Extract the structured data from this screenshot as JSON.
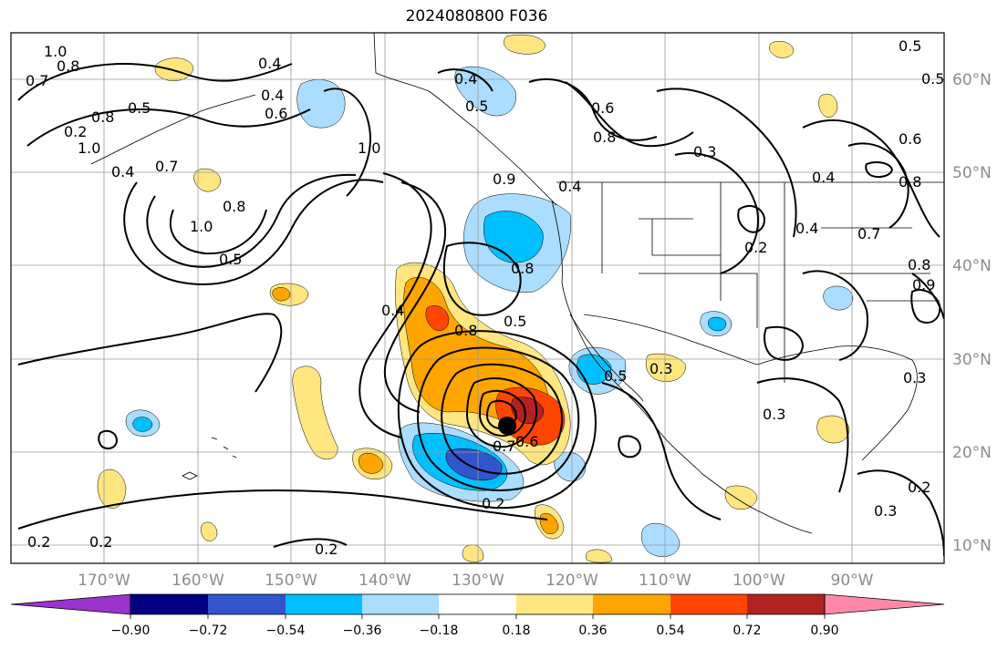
{
  "title": "2024080800 F036",
  "lon_ticks": [
    "170°W",
    "160°W",
    "150°W",
    "140°W",
    "130°W",
    "120°W",
    "110°W",
    "100°W",
    "90°W"
  ],
  "lat_ticks": [
    "60°N",
    "50°N",
    "40°N",
    "30°N",
    "20°N",
    "10°N"
  ],
  "colorbar": {
    "labels": [
      "−0.90",
      "−0.72",
      "−0.54",
      "−0.36",
      "−0.18",
      "0.18",
      "0.36",
      "0.54",
      "0.72",
      "0.90"
    ],
    "colors": [
      "#9933cc",
      "#000080",
      "#3355cc",
      "#00bfff",
      "#aaddff",
      "#ffffff",
      "#ffe680",
      "#ffa500",
      "#ff4500",
      "#b22222",
      "#ff88aa"
    ]
  },
  "contour_labels": [
    "1.0",
    "0.8",
    "0.7",
    "0.2",
    "1.0",
    "0.8",
    "0.5",
    "0.4",
    "0.7",
    "0.4",
    "1.0",
    "0.8",
    "0.5",
    "0.4",
    "0.6",
    "1.0",
    "0.4",
    "0.5",
    "0.6",
    "0.8",
    "0.3",
    "0.4",
    "0.9",
    "0.4",
    "0.8",
    "0.5",
    "0.8",
    "0.2",
    "0.4",
    "0.3",
    "0.5",
    "0.7",
    "0.2",
    "0.2",
    "0.2",
    "0.2",
    "0.3",
    "0.3",
    "0.8",
    "0.6",
    "0.7",
    "0.2",
    "0.5",
    "0.3",
    "0.4",
    "0.8",
    "0.9",
    "0.5",
    "0.6"
  ],
  "storm_marker": "black-dot"
}
